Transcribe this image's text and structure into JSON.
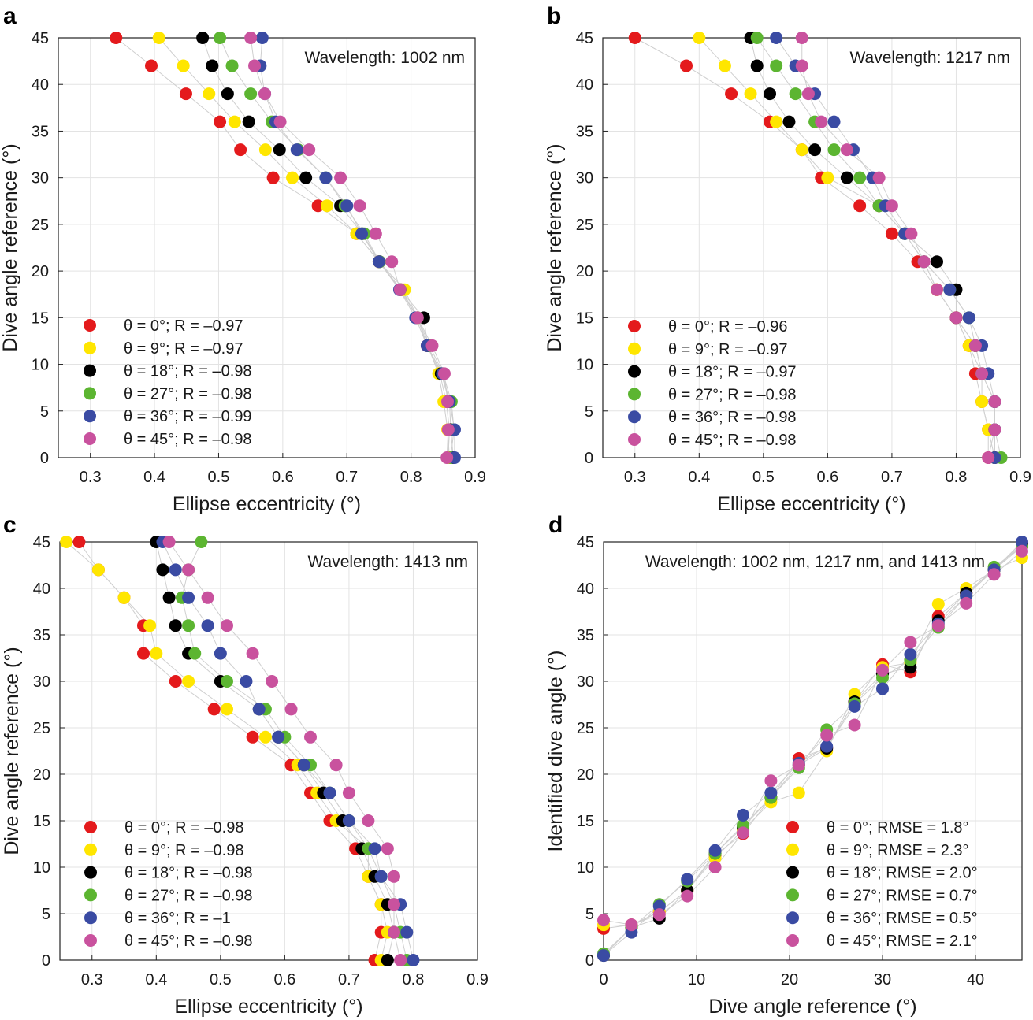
{
  "chart_data": [
    {
      "panel": "a",
      "type": "scatter",
      "annotation": "Wavelength: 1002 nm",
      "xlabel": "Ellipse eccentricity (°)",
      "ylabel": "Dive angle reference (°)",
      "xlim": [
        0.25,
        0.9
      ],
      "ylim": [
        0,
        45
      ],
      "xticks": [
        0.3,
        0.4,
        0.5,
        0.6,
        0.7,
        0.8,
        0.9
      ],
      "yticks": [
        0,
        5,
        10,
        15,
        20,
        25,
        30,
        35,
        40,
        45
      ],
      "grid": true,
      "legend_position": "bottom-left",
      "y": [
        45,
        42,
        39,
        36,
        33,
        30,
        27,
        24,
        21,
        18,
        15,
        12,
        9,
        6,
        3,
        0
      ],
      "series": [
        {
          "name": "θ = 0°; R = –0.97",
          "color": "#e41a1c",
          "x": [
            0.34,
            0.395,
            0.449,
            0.502,
            0.534,
            0.585,
            0.655,
            0.715,
            0.75,
            0.785,
            0.81,
            0.825,
            0.845,
            0.855,
            0.86,
            0.858
          ]
        },
        {
          "name": "θ = 9°; R = –0.97",
          "color": "#ffe600",
          "x": [
            0.407,
            0.445,
            0.485,
            0.525,
            0.573,
            0.615,
            0.669,
            0.715,
            0.75,
            0.79,
            0.81,
            0.826,
            0.843,
            0.851,
            0.857,
            0.86
          ]
        },
        {
          "name": "θ = 18°; R = –0.98",
          "color": "#000000",
          "x": [
            0.475,
            0.49,
            0.514,
            0.547,
            0.595,
            0.636,
            0.69,
            0.724,
            0.751,
            0.783,
            0.82,
            0.826,
            0.847,
            0.86,
            0.862,
            0.866
          ]
        },
        {
          "name": "θ = 27°; R = –0.98",
          "color": "#5cb531",
          "x": [
            0.502,
            0.521,
            0.55,
            0.583,
            0.624,
            0.667,
            0.697,
            0.727,
            0.751,
            0.783,
            0.81,
            0.829,
            0.85,
            0.863,
            0.867,
            0.862
          ]
        },
        {
          "name": "θ = 36°; R = –0.99",
          "color": "#3a4ba3",
          "x": [
            0.568,
            0.565,
            0.572,
            0.589,
            0.622,
            0.667,
            0.7,
            0.723,
            0.75,
            0.782,
            0.807,
            0.825,
            0.849,
            0.86,
            0.868,
            0.868
          ]
        },
        {
          "name": "θ = 45°; R = –0.98",
          "color": "#c9529e",
          "x": [
            0.55,
            0.556,
            0.572,
            0.596,
            0.641,
            0.69,
            0.72,
            0.745,
            0.77,
            0.783,
            0.81,
            0.833,
            0.852,
            0.857,
            0.858,
            0.856
          ]
        }
      ]
    },
    {
      "panel": "b",
      "type": "scatter",
      "annotation": "Wavelength: 1217 nm",
      "xlabel": "Ellipse eccentricity (°)",
      "ylabel": "Dive angle reference (°)",
      "xlim": [
        0.25,
        0.9
      ],
      "ylim": [
        0,
        45
      ],
      "xticks": [
        0.3,
        0.4,
        0.5,
        0.6,
        0.7,
        0.8,
        0.9
      ],
      "yticks": [
        0,
        5,
        10,
        15,
        20,
        25,
        30,
        35,
        40,
        45
      ],
      "grid": true,
      "legend_position": "bottom-left",
      "y": [
        45,
        42,
        39,
        36,
        33,
        30,
        27,
        24,
        21,
        18,
        15,
        12,
        9,
        6,
        3,
        0
      ],
      "series": [
        {
          "name": "θ = 0°; R = –0.96",
          "color": "#e41a1c",
          "x": [
            0.3,
            0.38,
            0.45,
            0.51,
            0.56,
            0.59,
            0.65,
            0.7,
            0.74,
            0.77,
            0.8,
            0.82,
            0.83,
            0.84,
            0.85,
            0.85
          ]
        },
        {
          "name": "θ = 9°; R = –0.97",
          "color": "#ffe600",
          "x": [
            0.4,
            0.44,
            0.48,
            0.52,
            0.56,
            0.6,
            0.68,
            0.72,
            0.75,
            0.77,
            0.8,
            0.82,
            0.84,
            0.84,
            0.85,
            0.86
          ]
        },
        {
          "name": "θ = 18°; R = –0.97",
          "color": "#000000",
          "x": [
            0.48,
            0.49,
            0.51,
            0.54,
            0.58,
            0.63,
            0.68,
            0.72,
            0.77,
            0.8,
            0.8,
            0.83,
            0.84,
            0.86,
            0.86,
            0.86
          ]
        },
        {
          "name": "θ = 27°; R = –0.98",
          "color": "#5cb531",
          "x": [
            0.49,
            0.52,
            0.55,
            0.58,
            0.61,
            0.65,
            0.68,
            0.72,
            0.75,
            0.79,
            0.82,
            0.83,
            0.84,
            0.86,
            0.86,
            0.87
          ]
        },
        {
          "name": "θ = 36°; R = –0.98",
          "color": "#3a4ba3",
          "x": [
            0.52,
            0.55,
            0.58,
            0.61,
            0.64,
            0.67,
            0.69,
            0.72,
            0.75,
            0.79,
            0.82,
            0.84,
            0.85,
            0.86,
            0.86,
            0.86
          ]
        },
        {
          "name": "θ = 45°; R = –0.98",
          "color": "#c9529e",
          "x": [
            0.56,
            0.56,
            0.57,
            0.59,
            0.63,
            0.68,
            0.7,
            0.73,
            0.75,
            0.77,
            0.8,
            0.83,
            0.84,
            0.86,
            0.86,
            0.85
          ]
        }
      ]
    },
    {
      "panel": "c",
      "type": "scatter",
      "annotation": "Wavelength: 1413 nm",
      "xlabel": "Ellipse eccentricity (°)",
      "ylabel": "Dive angle reference (°)",
      "xlim": [
        0.25,
        0.9
      ],
      "ylim": [
        0,
        45
      ],
      "xticks": [
        0.3,
        0.4,
        0.5,
        0.6,
        0.7,
        0.8,
        0.9
      ],
      "yticks": [
        0,
        5,
        10,
        15,
        20,
        25,
        30,
        35,
        40,
        45
      ],
      "grid": true,
      "legend_position": "bottom-left",
      "y": [
        45,
        42,
        39,
        36,
        33,
        30,
        27,
        24,
        21,
        18,
        15,
        12,
        9,
        6,
        3,
        0
      ],
      "series": [
        {
          "name": "θ = 0°; R = –0.98",
          "color": "#e41a1c",
          "x": [
            0.28,
            0.31,
            0.35,
            0.38,
            0.38,
            0.43,
            0.49,
            0.55,
            0.61,
            0.64,
            0.67,
            0.71,
            0.73,
            0.75,
            0.75,
            0.74
          ]
        },
        {
          "name": "θ = 9°; R = –0.98",
          "color": "#ffe600",
          "x": [
            0.26,
            0.31,
            0.35,
            0.39,
            0.4,
            0.45,
            0.51,
            0.57,
            0.62,
            0.65,
            0.68,
            0.73,
            0.73,
            0.75,
            0.76,
            0.75
          ]
        },
        {
          "name": "θ = 18°; R = –0.98",
          "color": "#000000",
          "x": [
            0.4,
            0.41,
            0.42,
            0.43,
            0.45,
            0.5,
            0.56,
            0.59,
            0.63,
            0.66,
            0.69,
            0.72,
            0.74,
            0.76,
            0.77,
            0.76
          ]
        },
        {
          "name": "θ = 27°; R = –0.98",
          "color": "#5cb531",
          "x": [
            0.47,
            0.45,
            0.44,
            0.45,
            0.46,
            0.51,
            0.57,
            0.6,
            0.64,
            0.67,
            0.7,
            0.73,
            0.75,
            0.77,
            0.78,
            0.79
          ]
        },
        {
          "name": "θ = 36°; R = –1",
          "color": "#3a4ba3",
          "x": [
            0.41,
            0.43,
            0.45,
            0.48,
            0.5,
            0.54,
            0.56,
            0.59,
            0.63,
            0.67,
            0.7,
            0.74,
            0.75,
            0.78,
            0.79,
            0.8
          ]
        },
        {
          "name": "θ = 45°; R = –0.98",
          "color": "#c9529e",
          "x": [
            0.42,
            0.45,
            0.48,
            0.51,
            0.55,
            0.58,
            0.61,
            0.64,
            0.68,
            0.7,
            0.73,
            0.76,
            0.77,
            0.77,
            0.77,
            0.78
          ]
        }
      ]
    },
    {
      "panel": "d",
      "type": "scatter",
      "annotation": "Wavelength: 1002 nm, 1217 nm, and 1413 nm",
      "xlabel": "Dive angle reference (°)",
      "ylabel": "Identified dive angle (°)",
      "xlim": [
        0,
        45
      ],
      "ylim": [
        0,
        45
      ],
      "xticks": [
        0,
        10,
        20,
        30,
        40
      ],
      "yticks": [
        0,
        5,
        10,
        15,
        20,
        25,
        30,
        35,
        40,
        45
      ],
      "grid": true,
      "legend_position": "bottom-right",
      "x": [
        0,
        3,
        6,
        9,
        12,
        15,
        18,
        21,
        24,
        27,
        30,
        33,
        36,
        39,
        42,
        45
      ],
      "series": [
        {
          "name": "θ = 0°; RMSE = 1.8°",
          "color": "#e41a1c",
          "y": [
            3.4,
            3.8,
            5.2,
            7.5,
            11.3,
            13.6,
            17.5,
            21.7,
            22.8,
            27.8,
            31.8,
            31.0,
            37.0,
            39.5,
            42.0,
            44.5
          ]
        },
        {
          "name": "θ = 9°; RMSE = 2.3°",
          "color": "#ffe600",
          "y": [
            3.8,
            3.7,
            5.2,
            7.5,
            11.0,
            14.0,
            17.0,
            18.0,
            22.5,
            28.6,
            31.5,
            32.0,
            38.3,
            40.0,
            42.0,
            43.3
          ]
        },
        {
          "name": "θ = 18°; RMSE = 2.0°",
          "color": "#000000",
          "y": [
            0.5,
            3.5,
            4.5,
            7.5,
            11.5,
            14.3,
            17.5,
            21.0,
            22.8,
            27.8,
            30.8,
            31.5,
            36.5,
            39.5,
            42.0,
            44.8
          ]
        },
        {
          "name": "θ = 27°; RMSE = 0.7°",
          "color": "#5cb531",
          "y": [
            0.7,
            3.5,
            6.0,
            8.5,
            11.5,
            14.5,
            17.5,
            20.7,
            24.8,
            27.6,
            30.4,
            32.3,
            35.8,
            39.2,
            42.3,
            44.5
          ]
        },
        {
          "name": "θ = 36°; RMSE = 0.5°",
          "color": "#3a4ba3",
          "y": [
            0.5,
            3.0,
            5.8,
            8.7,
            11.8,
            15.6,
            18.0,
            21.2,
            23.0,
            27.3,
            29.2,
            32.9,
            36.2,
            39.2,
            42.0,
            45.0
          ]
        },
        {
          "name": "θ = 45°; RMSE = 2.1°",
          "color": "#c9529e",
          "y": [
            4.3,
            3.8,
            4.9,
            6.9,
            10.0,
            13.7,
            19.3,
            21.0,
            24.2,
            25.3,
            31.2,
            34.2,
            36.0,
            38.4,
            41.5,
            44.0
          ]
        }
      ]
    }
  ]
}
